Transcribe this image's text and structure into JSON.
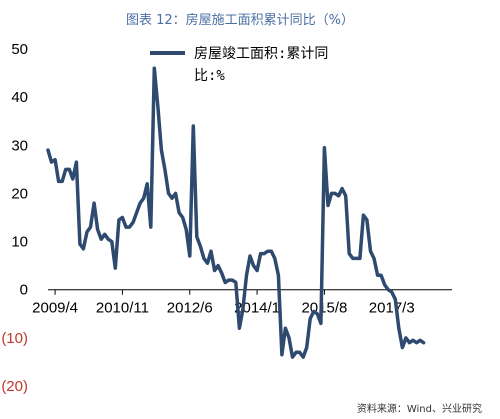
{
  "chart_data": {
    "type": "line",
    "title": "图表 12：房屋施工面积累计同比（%）",
    "xlabel": "",
    "ylabel": "",
    "ylim": [
      -20,
      50
    ],
    "yticks": [
      50,
      40,
      30,
      20,
      10,
      0,
      -10,
      -20
    ],
    "ytick_labels": [
      "50",
      "40",
      "30",
      "20",
      "10",
      "0",
      "(10)",
      "(20)"
    ],
    "xlim": [
      "2009-02",
      "2018-08"
    ],
    "xticks": [
      "2009-04",
      "2010-11",
      "2012-06",
      "2014-01",
      "2015-08",
      "2017-03"
    ],
    "xtick_labels": [
      "2009/4",
      "2010/11",
      "2012/6",
      "2014/1",
      "2015/8",
      "2017/3"
    ],
    "legend_position": "top-center",
    "grid": false,
    "series": [
      {
        "name": "房屋竣工面积:累计同比:%",
        "color": "#2e4a6f",
        "points": [
          [
            "2009-02",
            29.0
          ],
          [
            "2009-03",
            26.5
          ],
          [
            "2009-04",
            27.0
          ],
          [
            "2009-05",
            22.5
          ],
          [
            "2009-06",
            22.5
          ],
          [
            "2009-07",
            25.0
          ],
          [
            "2009-08",
            25.0
          ],
          [
            "2009-09",
            23.0
          ],
          [
            "2009-10",
            26.5
          ],
          [
            "2009-11",
            9.5
          ],
          [
            "2009-12",
            8.5
          ],
          [
            "2010-01",
            12.0
          ],
          [
            "2010-02",
            13.0
          ],
          [
            "2010-03",
            18.0
          ],
          [
            "2010-04",
            12.5
          ],
          [
            "2010-05",
            10.5
          ],
          [
            "2010-06",
            11.5
          ],
          [
            "2010-07",
            10.5
          ],
          [
            "2010-08",
            10.0
          ],
          [
            "2010-09",
            4.5
          ],
          [
            "2010-10",
            14.5
          ],
          [
            "2010-11",
            15.0
          ],
          [
            "2010-12",
            13.0
          ],
          [
            "2011-01",
            13.0
          ],
          [
            "2011-02",
            14.0
          ],
          [
            "2011-03",
            16.0
          ],
          [
            "2011-04",
            18.0
          ],
          [
            "2011-05",
            19.0
          ],
          [
            "2011-06",
            22.0
          ],
          [
            "2011-07",
            13.0
          ],
          [
            "2011-08",
            46.0
          ],
          [
            "2011-09",
            38.0
          ],
          [
            "2011-10",
            29.0
          ],
          [
            "2011-11",
            25.0
          ],
          [
            "2011-12",
            20.0
          ],
          [
            "2012-01",
            19.0
          ],
          [
            "2012-02",
            20.0
          ],
          [
            "2012-03",
            16.0
          ],
          [
            "2012-04",
            15.0
          ],
          [
            "2012-05",
            12.5
          ],
          [
            "2012-06",
            7.0
          ],
          [
            "2012-07",
            34.0
          ],
          [
            "2012-08",
            11.0
          ],
          [
            "2012-09",
            9.0
          ],
          [
            "2012-10",
            6.5
          ],
          [
            "2012-11",
            5.5
          ],
          [
            "2012-12",
            8.0
          ],
          [
            "2013-01",
            4.0
          ],
          [
            "2013-02",
            5.0
          ],
          [
            "2013-03",
            3.5
          ],
          [
            "2013-04",
            1.5
          ],
          [
            "2013-05",
            2.0
          ],
          [
            "2013-06",
            2.0
          ],
          [
            "2013-07",
            1.5
          ],
          [
            "2013-08",
            -8.0
          ],
          [
            "2013-09",
            -4.0
          ],
          [
            "2013-10",
            3.0
          ],
          [
            "2013-11",
            7.0
          ],
          [
            "2013-12",
            5.0
          ],
          [
            "2014-01",
            4.0
          ],
          [
            "2014-02",
            7.5
          ],
          [
            "2014-03",
            7.5
          ],
          [
            "2014-04",
            8.0
          ],
          [
            "2014-05",
            8.0
          ],
          [
            "2014-06",
            6.5
          ],
          [
            "2014-07",
            3.0
          ],
          [
            "2014-08",
            -13.5
          ],
          [
            "2014-09",
            -8.0
          ],
          [
            "2014-10",
            -10.0
          ],
          [
            "2014-11",
            -14.0
          ],
          [
            "2014-12",
            -13.0
          ],
          [
            "2015-01",
            -13.0
          ],
          [
            "2015-02",
            -14.0
          ],
          [
            "2015-03",
            -12.0
          ],
          [
            "2015-04",
            -6.0
          ],
          [
            "2015-05",
            -4.5
          ],
          [
            "2015-06",
            -5.0
          ],
          [
            "2015-07",
            -7.0
          ],
          [
            "2015-08",
            29.5
          ],
          [
            "2015-09",
            17.5
          ],
          [
            "2015-10",
            20.0
          ],
          [
            "2015-11",
            20.0
          ],
          [
            "2015-12",
            19.5
          ],
          [
            "2016-01",
            21.0
          ],
          [
            "2016-02",
            19.5
          ],
          [
            "2016-03",
            7.5
          ],
          [
            "2016-04",
            6.5
          ],
          [
            "2016-05",
            6.5
          ],
          [
            "2016-06",
            6.5
          ],
          [
            "2016-07",
            15.5
          ],
          [
            "2016-08",
            14.5
          ],
          [
            "2016-09",
            8.0
          ],
          [
            "2016-10",
            6.5
          ],
          [
            "2016-11",
            3.0
          ],
          [
            "2016-12",
            3.0
          ],
          [
            "2017-01",
            1.0
          ],
          [
            "2017-02",
            0.0
          ],
          [
            "2017-03",
            -0.5
          ],
          [
            "2017-04",
            -2.0
          ],
          [
            "2017-05",
            -8.0
          ],
          [
            "2017-06",
            -12.0
          ],
          [
            "2017-07",
            -10.0
          ],
          [
            "2017-08",
            -11.0
          ],
          [
            "2017-09",
            -10.5
          ],
          [
            "2017-10",
            -11.0
          ],
          [
            "2017-11",
            -10.5
          ],
          [
            "2017-12",
            -11.0
          ]
        ]
      }
    ],
    "source": "资料来源：Wind、兴业研究"
  }
}
